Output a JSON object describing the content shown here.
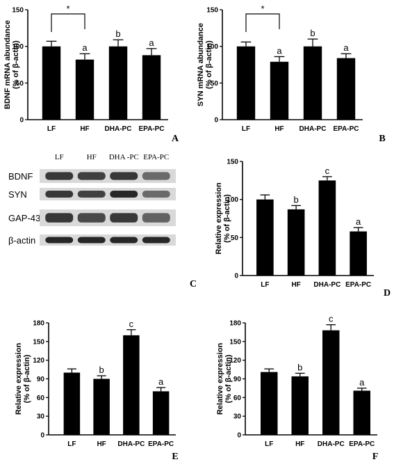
{
  "chart_data": [
    {
      "panel": "A",
      "type": "bar",
      "categories": [
        "LF",
        "HF",
        "DHA-PC",
        "EPA-PC"
      ],
      "values": [
        100,
        82,
        100,
        88
      ],
      "errors": [
        7,
        8,
        9,
        9
      ],
      "letters": [
        "",
        "a",
        "b",
        "a"
      ],
      "comparison": {
        "from": 0,
        "to": 1,
        "symbol": "*"
      },
      "ylabel_lines": [
        "BDNF mRNA abundance",
        "(% of β-actin)"
      ],
      "ylim": [
        0,
        150
      ],
      "yticks": [
        0,
        50,
        100,
        150
      ]
    },
    {
      "panel": "B",
      "type": "bar",
      "categories": [
        "LF",
        "HF",
        "DHA-PC",
        "EPA-PC"
      ],
      "values": [
        100,
        79,
        100,
        84
      ],
      "errors": [
        6,
        7,
        10,
        6
      ],
      "letters": [
        "",
        "a",
        "b",
        "a"
      ],
      "comparison": {
        "from": 0,
        "to": 1,
        "symbol": "*"
      },
      "ylabel_lines": [
        "SYN mRNA abundance",
        "(% of β-actin)"
      ],
      "ylim": [
        0,
        150
      ],
      "yticks": [
        0,
        50,
        100,
        150
      ]
    },
    {
      "panel": "D",
      "type": "bar",
      "categories": [
        "LF",
        "HF",
        "DHA-PC",
        "EPA-PC"
      ],
      "values": [
        100,
        87,
        125,
        58
      ],
      "errors": [
        6,
        5,
        5,
        5
      ],
      "letters": [
        "",
        "b",
        "c",
        "a"
      ],
      "ylabel_lines": [
        "Relative expression",
        "(% of β-actin)"
      ],
      "ylim": [
        0,
        150
      ],
      "yticks": [
        0,
        50,
        100,
        150
      ]
    },
    {
      "panel": "E",
      "type": "bar",
      "categories": [
        "LF",
        "HF",
        "DHA-PC",
        "EPA-PC"
      ],
      "values": [
        100,
        90,
        160,
        70
      ],
      "errors": [
        6,
        5,
        9,
        6
      ],
      "letters": [
        "",
        "b",
        "c",
        "a"
      ],
      "ylabel_lines": [
        "Relative expression",
        "(% of β-actin)"
      ],
      "ylim": [
        0,
        180
      ],
      "yticks": [
        0,
        30,
        60,
        90,
        120,
        150,
        180
      ]
    },
    {
      "panel": "F",
      "type": "bar",
      "categories": [
        "LF",
        "HF",
        "DHA-PC",
        "EPA-PC"
      ],
      "values": [
        101,
        94,
        168,
        71
      ],
      "errors": [
        5,
        5,
        9,
        4
      ],
      "letters": [
        "",
        "b",
        "c",
        "a"
      ],
      "ylabel_lines": [
        "Relative expression",
        "(% of β-actin)"
      ],
      "ylim": [
        0,
        180
      ],
      "yticks": [
        0,
        30,
        60,
        90,
        120,
        150,
        180
      ]
    }
  ],
  "blot": {
    "panel": "C",
    "lanes": [
      "LF",
      "HF",
      "DHA -PC",
      "EPA-PC"
    ],
    "rows": [
      {
        "label": "BDNF",
        "intensities": [
          0.85,
          0.8,
          0.85,
          0.55
        ]
      },
      {
        "label": "SYN",
        "intensities": [
          0.85,
          0.8,
          0.95,
          0.55
        ]
      },
      {
        "label": "GAP-43",
        "intensities": [
          0.85,
          0.75,
          0.85,
          0.6
        ]
      },
      {
        "label": "β-actin",
        "intensities": [
          0.95,
          0.95,
          0.95,
          0.95
        ]
      }
    ]
  },
  "colors": {
    "bar": "#000000",
    "axis": "#000000",
    "background": "#ffffff"
  }
}
